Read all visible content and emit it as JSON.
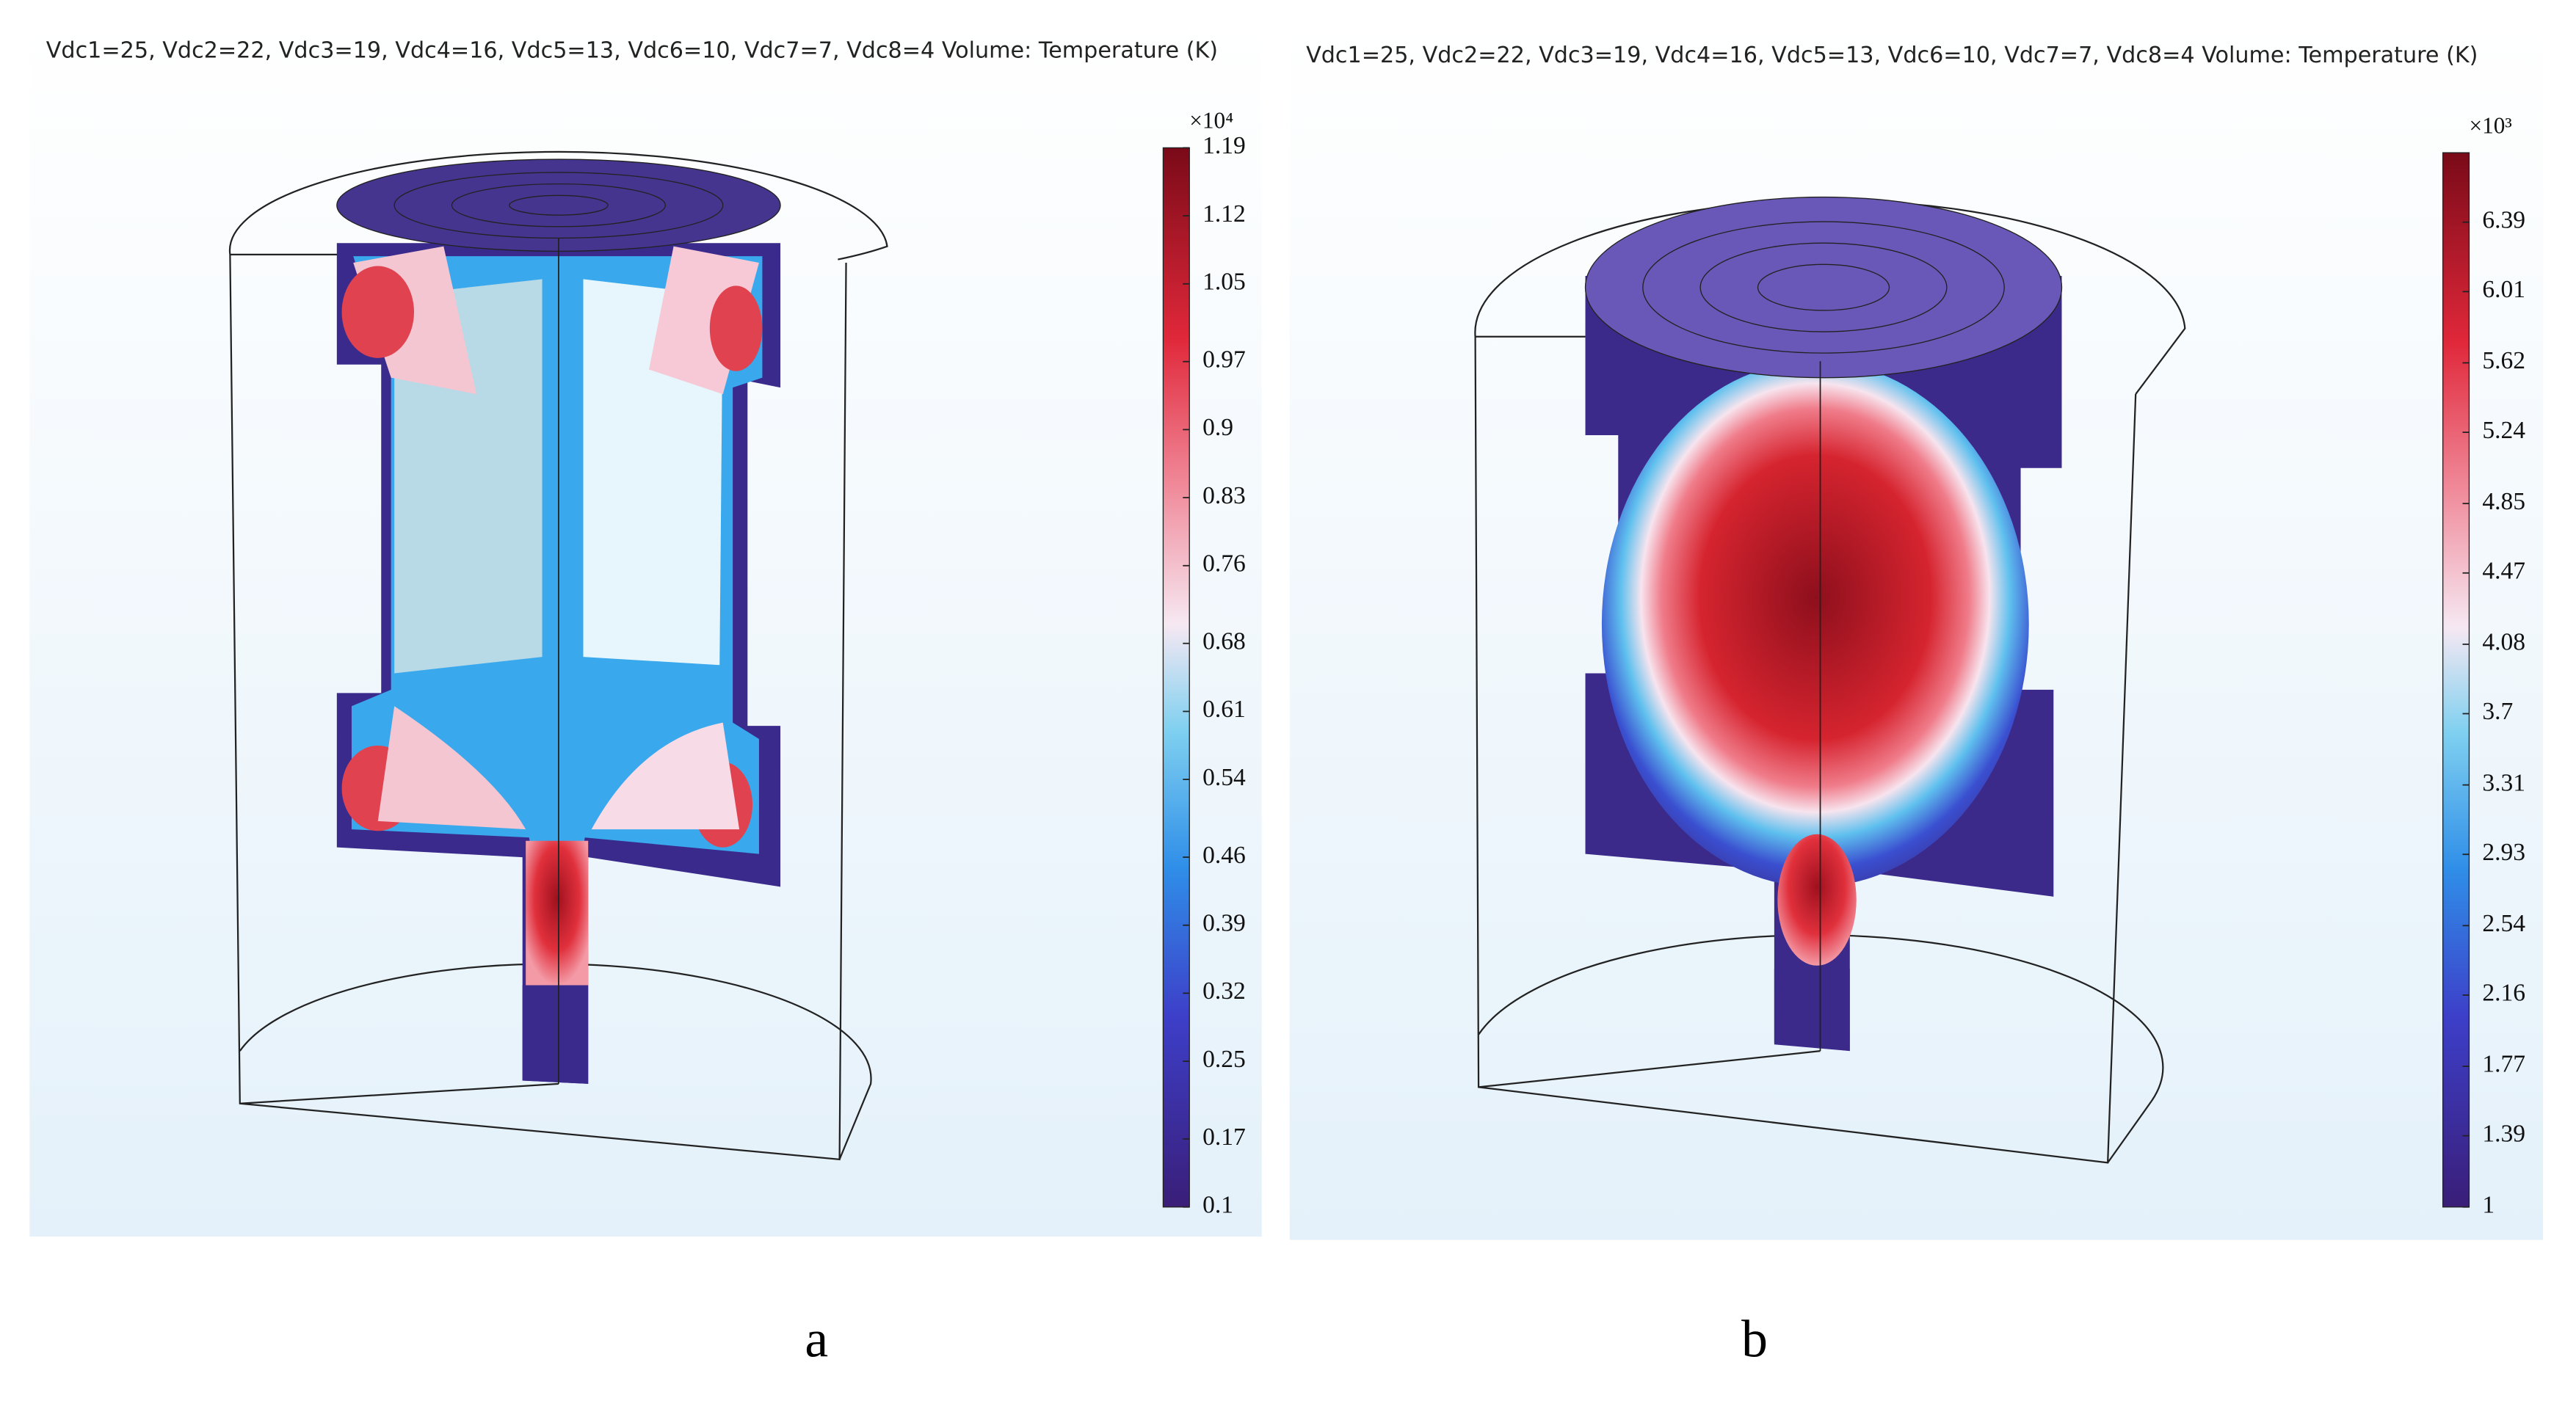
{
  "panels": [
    {
      "header": "Vdc1=25, Vdc2=22, Vdc3=19, Vdc4=16, Vdc5=13, Vdc6=10, Vdc7=7, Vdc8=4   Volume: Temperature (K)",
      "colorbar": {
        "multiplier": "×10⁴",
        "clim": [
          0.1,
          1.19
        ],
        "ticks": [
          1.19,
          1.12,
          1.05,
          0.97,
          0.9,
          0.83,
          0.76,
          0.68,
          0.61,
          0.54,
          0.46,
          0.39,
          0.32,
          0.25,
          0.17,
          0.1
        ]
      },
      "caption": "a"
    },
    {
      "header": "Vdc1=25, Vdc2=22, Vdc3=19, Vdc4=16, Vdc5=13, Vdc6=10, Vdc7=7, Vdc8=4   Volume: Temperature (K)",
      "colorbar": {
        "multiplier": "×10³",
        "clim": [
          1,
          6.77
        ],
        "ticks": [
          6.39,
          6.01,
          5.62,
          5.24,
          4.85,
          4.47,
          4.08,
          3.7,
          3.31,
          2.93,
          2.54,
          2.16,
          1.77,
          1.39,
          1
        ]
      },
      "caption": "b"
    }
  ]
}
